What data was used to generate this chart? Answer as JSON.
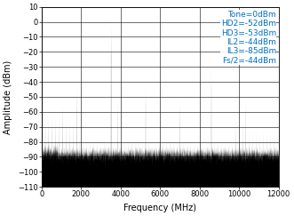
{
  "xlabel": "Frequency (MHz)",
  "ylabel": "Amplitude (dBm)",
  "xlim": [
    0,
    12000
  ],
  "ylim": [
    -110,
    10
  ],
  "yticks": [
    10,
    0,
    -10,
    -20,
    -30,
    -40,
    -50,
    -60,
    -70,
    -80,
    -90,
    -100,
    -110
  ],
  "xticks": [
    0,
    2000,
    4000,
    6000,
    8000,
    10000,
    12000
  ],
  "annotation_lines": [
    "Tone=0dBm",
    "HD2=-52dBm",
    "HD3=-53dBm",
    "IL2=-44dBm",
    "IL3=-85dBm",
    "Fs/2=-44dBm"
  ],
  "annotation_color": "#0070C0",
  "noise_floor": -88,
  "noise_std": 2.5,
  "tone_freq": 3500,
  "tone_amp": 0,
  "spurs": [
    {
      "freq": 175,
      "amp": -64
    },
    {
      "freq": 350,
      "amp": -62
    },
    {
      "freq": 525,
      "amp": -62
    },
    {
      "freq": 700,
      "amp": -63
    },
    {
      "freq": 875,
      "amp": -64
    },
    {
      "freq": 1050,
      "amp": -55
    },
    {
      "freq": 1225,
      "amp": -65
    },
    {
      "freq": 1400,
      "amp": -66
    },
    {
      "freq": 1575,
      "amp": -66
    },
    {
      "freq": 1750,
      "amp": -44
    },
    {
      "freq": 1925,
      "amp": -76
    },
    {
      "freq": 2100,
      "amp": -76
    },
    {
      "freq": 2275,
      "amp": -77
    },
    {
      "freq": 2450,
      "amp": -78
    },
    {
      "freq": 2625,
      "amp": -78
    },
    {
      "freq": 2800,
      "amp": -79
    },
    {
      "freq": 2975,
      "amp": -80
    },
    {
      "freq": 3150,
      "amp": -79
    },
    {
      "freq": 3325,
      "amp": -81
    },
    {
      "freq": 3675,
      "amp": -82
    },
    {
      "freq": 3850,
      "amp": -52
    },
    {
      "freq": 4025,
      "amp": -81
    },
    {
      "freq": 4200,
      "amp": -81
    },
    {
      "freq": 4375,
      "amp": -80
    },
    {
      "freq": 4550,
      "amp": -79
    },
    {
      "freq": 4725,
      "amp": -80
    },
    {
      "freq": 4900,
      "amp": -80
    },
    {
      "freq": 5075,
      "amp": -79
    },
    {
      "freq": 5250,
      "amp": -44
    },
    {
      "freq": 5425,
      "amp": -80
    },
    {
      "freq": 5600,
      "amp": -81
    },
    {
      "freq": 5775,
      "amp": -81
    },
    {
      "freq": 5950,
      "amp": -80
    },
    {
      "freq": 6125,
      "amp": -75
    },
    {
      "freq": 6300,
      "amp": -77
    },
    {
      "freq": 6475,
      "amp": -77
    },
    {
      "freq": 6650,
      "amp": -79
    },
    {
      "freq": 6825,
      "amp": -80
    },
    {
      "freq": 7000,
      "amp": -52
    },
    {
      "freq": 7175,
      "amp": -80
    },
    {
      "freq": 7350,
      "amp": -82
    },
    {
      "freq": 7525,
      "amp": -82
    },
    {
      "freq": 7700,
      "amp": -82
    },
    {
      "freq": 7875,
      "amp": -82
    },
    {
      "freq": 8050,
      "amp": -82
    },
    {
      "freq": 8225,
      "amp": -82
    },
    {
      "freq": 8400,
      "amp": -82
    },
    {
      "freq": 8575,
      "amp": -32
    },
    {
      "freq": 8750,
      "amp": -78
    },
    {
      "freq": 8925,
      "amp": -79
    },
    {
      "freq": 9100,
      "amp": -80
    },
    {
      "freq": 9275,
      "amp": -80
    },
    {
      "freq": 9450,
      "amp": -80
    },
    {
      "freq": 9625,
      "amp": -80
    },
    {
      "freq": 9800,
      "amp": -65
    },
    {
      "freq": 9975,
      "amp": -81
    },
    {
      "freq": 10150,
      "amp": -65
    },
    {
      "freq": 10325,
      "amp": -53
    },
    {
      "freq": 10500,
      "amp": -72
    },
    {
      "freq": 10675,
      "amp": -72
    },
    {
      "freq": 10850,
      "amp": -73
    },
    {
      "freq": 11025,
      "amp": -73
    },
    {
      "freq": 11200,
      "amp": -72
    },
    {
      "freq": 11375,
      "amp": -73
    },
    {
      "freq": 11550,
      "amp": -73
    },
    {
      "freq": 11725,
      "amp": -74
    }
  ],
  "fill_color": "black",
  "bg_color": "white",
  "label_fontsize": 7,
  "tick_fontsize": 6,
  "annot_fontsize": 6.5
}
